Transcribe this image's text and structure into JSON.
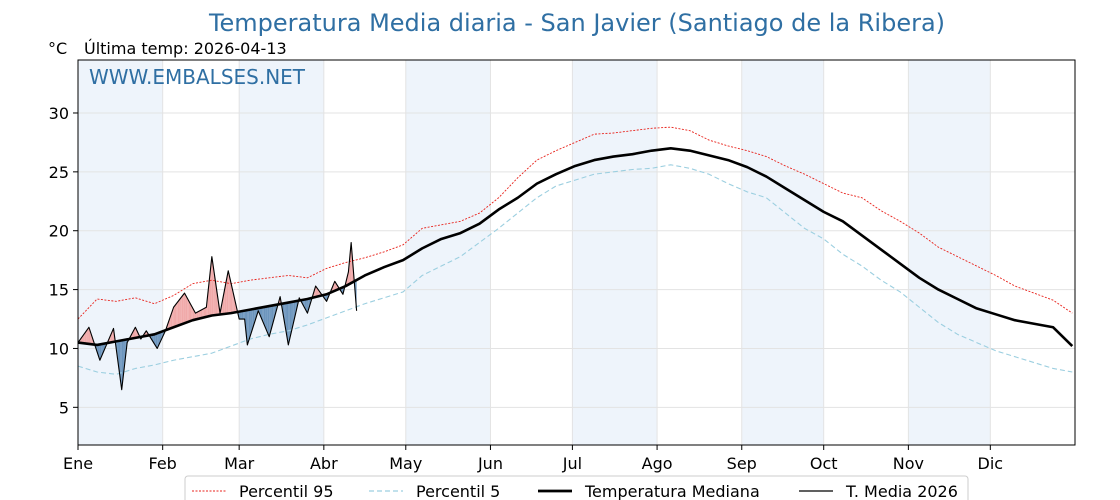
{
  "chart_data": {
    "type": "line",
    "title": "Temperatura Media diaria - San Javier (Santiago de la Ribera)",
    "subtitle": "Última temp: 2026-04-13",
    "unit_label": "°C",
    "watermark": "WWW.EMBALSES.NET",
    "xlim": [
      1,
      366
    ],
    "ylim": [
      1.8,
      34.5
    ],
    "y_ticks": [
      5,
      10,
      15,
      20,
      25,
      30
    ],
    "x_ticks": [
      {
        "day": 1,
        "label": "Ene"
      },
      {
        "day": 32,
        "label": "Feb"
      },
      {
        "day": 60,
        "label": "Mar"
      },
      {
        "day": 91,
        "label": "Abr"
      },
      {
        "day": 121,
        "label": "May"
      },
      {
        "day": 152,
        "label": "Jun"
      },
      {
        "day": 182,
        "label": "Jul"
      },
      {
        "day": 213,
        "label": "Ago"
      },
      {
        "day": 244,
        "label": "Sep"
      },
      {
        "day": 274,
        "label": "Oct"
      },
      {
        "day": 305,
        "label": "Nov"
      },
      {
        "day": 335,
        "label": "Dic"
      }
    ],
    "grid": true,
    "legend_position": "bottom",
    "colors": {
      "p95": "#e8231c",
      "p5": "#9ccfe0",
      "median": "#000000",
      "current": "#000000",
      "above": "#f0a9a9",
      "below": "#6c95bd",
      "band": "#eef4fb"
    },
    "series": [
      {
        "name": "Percentil 95",
        "style": "dotted",
        "x": [
          1,
          8,
          15,
          22,
          29,
          36,
          43,
          50,
          57,
          64,
          71,
          78,
          85,
          92,
          99,
          106,
          113,
          120,
          127,
          134,
          141,
          148,
          155,
          162,
          169,
          176,
          183,
          190,
          197,
          204,
          211,
          218,
          225,
          232,
          239,
          246,
          253,
          260,
          267,
          274,
          281,
          288,
          295,
          302,
          309,
          316,
          323,
          330,
          337,
          344,
          351,
          358,
          365
        ],
        "values": [
          12.5,
          14.2,
          14.0,
          14.3,
          13.8,
          14.5,
          15.5,
          15.8,
          15.5,
          15.8,
          16.0,
          16.2,
          16.0,
          16.8,
          17.3,
          17.7,
          18.2,
          18.8,
          20.2,
          20.5,
          20.8,
          21.5,
          22.8,
          24.5,
          26.0,
          26.8,
          27.5,
          28.2,
          28.3,
          28.5,
          28.7,
          28.8,
          28.5,
          27.7,
          27.2,
          26.8,
          26.3,
          25.5,
          24.8,
          24.0,
          23.2,
          22.8,
          21.7,
          20.8,
          19.8,
          18.6,
          17.8,
          17.0,
          16.2,
          15.3,
          14.7,
          14.1,
          13.0
        ]
      },
      {
        "name": "Percentil 5",
        "style": "dashed",
        "x": [
          1,
          8,
          15,
          22,
          29,
          36,
          43,
          50,
          57,
          64,
          71,
          78,
          85,
          92,
          99,
          106,
          113,
          120,
          127,
          134,
          141,
          148,
          155,
          162,
          169,
          176,
          183,
          190,
          197,
          204,
          211,
          218,
          225,
          232,
          239,
          246,
          253,
          260,
          267,
          274,
          281,
          288,
          295,
          302,
          309,
          316,
          323,
          330,
          337,
          344,
          351,
          358,
          365
        ],
        "values": [
          8.5,
          8.0,
          7.8,
          8.3,
          8.6,
          9.0,
          9.3,
          9.6,
          10.2,
          10.8,
          11.2,
          11.5,
          12.0,
          12.6,
          13.2,
          13.8,
          14.3,
          14.8,
          16.2,
          17.0,
          17.8,
          19.0,
          20.2,
          21.5,
          22.8,
          23.8,
          24.3,
          24.8,
          25.0,
          25.2,
          25.3,
          25.6,
          25.3,
          24.8,
          24.0,
          23.3,
          22.8,
          21.5,
          20.2,
          19.3,
          18.0,
          17.0,
          15.8,
          14.8,
          13.5,
          12.2,
          11.2,
          10.5,
          9.8,
          9.3,
          8.8,
          8.3,
          8.0
        ]
      },
      {
        "name": "Temperatura Mediana",
        "style": "solid-thick",
        "x": [
          1,
          8,
          15,
          22,
          29,
          36,
          43,
          50,
          57,
          64,
          71,
          78,
          85,
          92,
          99,
          106,
          113,
          120,
          127,
          134,
          141,
          148,
          155,
          162,
          169,
          176,
          183,
          190,
          197,
          204,
          211,
          218,
          225,
          232,
          239,
          246,
          253,
          260,
          267,
          274,
          281,
          288,
          295,
          302,
          309,
          316,
          323,
          330,
          337,
          344,
          351,
          358,
          365
        ],
        "values": [
          10.5,
          10.3,
          10.6,
          10.9,
          11.2,
          11.8,
          12.4,
          12.8,
          13.0,
          13.3,
          13.6,
          13.9,
          14.2,
          14.6,
          15.3,
          16.2,
          16.9,
          17.5,
          18.5,
          19.3,
          19.8,
          20.6,
          21.8,
          22.8,
          24.0,
          24.8,
          25.5,
          26.0,
          26.3,
          26.5,
          26.8,
          27.0,
          26.8,
          26.4,
          26.0,
          25.4,
          24.6,
          23.6,
          22.6,
          21.6,
          20.8,
          19.6,
          18.4,
          17.2,
          16.0,
          15.0,
          14.2,
          13.4,
          12.9,
          12.4,
          12.1,
          11.8,
          10.2
        ]
      },
      {
        "name": "T. Media 2026",
        "style": "solid-thin",
        "x": [
          1,
          5,
          9,
          14,
          17,
          19,
          22,
          24,
          26,
          30,
          33,
          36,
          40,
          44,
          48,
          50,
          53,
          56,
          60,
          62,
          63,
          67,
          71,
          75,
          78,
          82,
          85,
          88,
          92,
          95,
          98,
          100,
          101,
          103
        ],
        "values": [
          10.5,
          11.8,
          9.0,
          11.7,
          6.5,
          10.5,
          11.8,
          10.8,
          11.5,
          10.0,
          11.5,
          13.5,
          14.7,
          13.0,
          13.5,
          17.8,
          13.0,
          16.6,
          12.5,
          12.5,
          10.3,
          13.2,
          11.0,
          14.4,
          10.3,
          14.3,
          13.0,
          15.3,
          14.0,
          15.7,
          14.6,
          16.5,
          19.0,
          13.2
        ]
      }
    ]
  }
}
